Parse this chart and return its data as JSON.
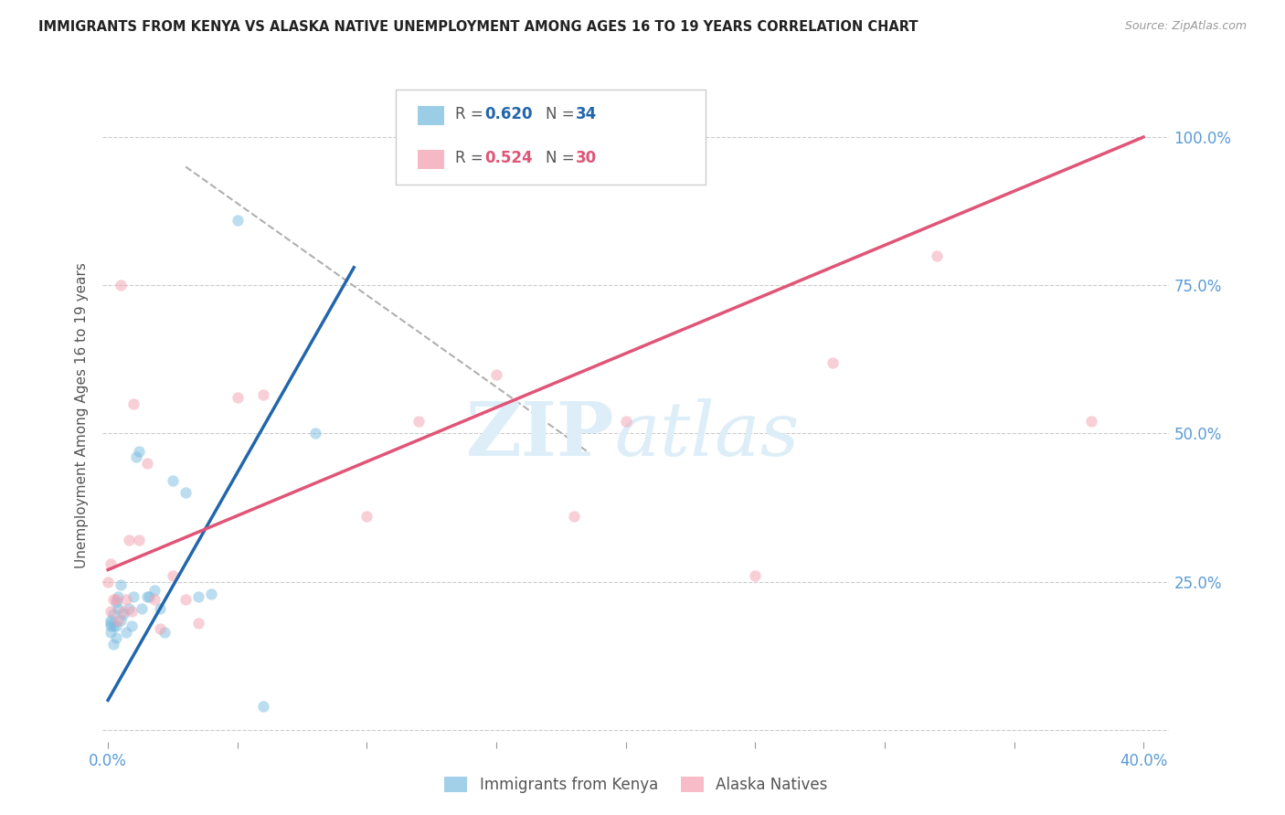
{
  "title": "IMMIGRANTS FROM KENYA VS ALASKA NATIVE UNEMPLOYMENT AMONG AGES 16 TO 19 YEARS CORRELATION CHART",
  "source": "Source: ZipAtlas.com",
  "ylabel": "Unemployment Among Ages 16 to 19 years",
  "xlim": [
    -0.002,
    0.41
  ],
  "ylim": [
    -0.02,
    1.08
  ],
  "ytick_positions": [
    0.0,
    0.25,
    0.5,
    0.75,
    1.0
  ],
  "xtick_positions": [
    0.0,
    0.05,
    0.1,
    0.15,
    0.2,
    0.25,
    0.3,
    0.35,
    0.4
  ],
  "blue_color": "#7bbde0",
  "pink_color": "#f4a0b0",
  "blue_line_color": "#2166ac",
  "pink_line_color": "#e05577",
  "dashed_line_color": "#b0b0b0",
  "watermark_color": "#ddeef8",
  "grid_color": "#cccccc",
  "right_label_color": "#5b9bd5",
  "bottom_label_color": "#5b9bd5",
  "title_color": "#222222",
  "ylabel_color": "#555555",
  "blue_scatter_x": [
    0.001,
    0.001,
    0.001,
    0.001,
    0.002,
    0.002,
    0.002,
    0.003,
    0.003,
    0.003,
    0.004,
    0.004,
    0.005,
    0.005,
    0.006,
    0.007,
    0.008,
    0.009,
    0.01,
    0.011,
    0.012,
    0.013,
    0.015,
    0.016,
    0.018,
    0.02,
    0.022,
    0.025,
    0.03,
    0.035,
    0.04,
    0.05,
    0.06,
    0.08
  ],
  "blue_scatter_y": [
    0.175,
    0.18,
    0.165,
    0.185,
    0.145,
    0.175,
    0.195,
    0.155,
    0.175,
    0.215,
    0.205,
    0.225,
    0.185,
    0.245,
    0.195,
    0.165,
    0.205,
    0.175,
    0.225,
    0.46,
    0.47,
    0.205,
    0.225,
    0.225,
    0.235,
    0.205,
    0.165,
    0.42,
    0.4,
    0.225,
    0.23,
    0.86,
    0.04,
    0.5
  ],
  "pink_scatter_x": [
    0.001,
    0.001,
    0.002,
    0.003,
    0.004,
    0.005,
    0.006,
    0.007,
    0.008,
    0.009,
    0.01,
    0.012,
    0.015,
    0.018,
    0.02,
    0.025,
    0.03,
    0.035,
    0.05,
    0.06,
    0.1,
    0.12,
    0.15,
    0.18,
    0.2,
    0.25,
    0.28,
    0.32,
    0.38,
    0.0
  ],
  "pink_scatter_y": [
    0.28,
    0.2,
    0.22,
    0.22,
    0.185,
    0.75,
    0.2,
    0.22,
    0.32,
    0.2,
    0.55,
    0.32,
    0.45,
    0.22,
    0.17,
    0.26,
    0.22,
    0.18,
    0.56,
    0.565,
    0.36,
    0.52,
    0.6,
    0.36,
    0.52,
    0.26,
    0.62,
    0.8,
    0.52,
    0.25
  ],
  "blue_line_x": [
    0.0,
    0.095
  ],
  "blue_line_y": [
    0.05,
    0.78
  ],
  "pink_line_x": [
    0.0,
    0.4
  ],
  "pink_line_y": [
    0.27,
    1.0
  ],
  "dashed_line_x": [
    0.03,
    0.185
  ],
  "dashed_line_y": [
    0.95,
    0.47
  ],
  "legend_blue_r": "0.620",
  "legend_blue_n": "34",
  "legend_pink_r": "0.524",
  "legend_pink_n": "30"
}
